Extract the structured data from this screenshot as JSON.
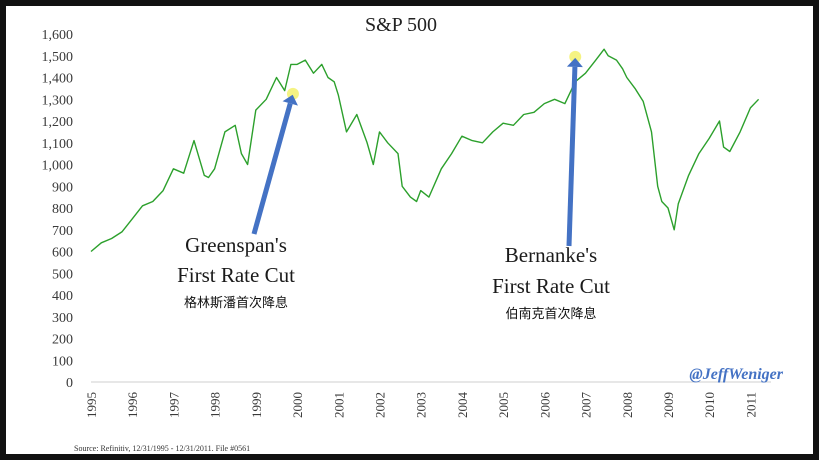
{
  "chart_data": {
    "type": "line",
    "title": "S&P 500",
    "xlabel": "",
    "ylabel": "",
    "ylim": [
      0,
      1600
    ],
    "yticks": [
      "0",
      "100",
      "200",
      "300",
      "400",
      "500",
      "600",
      "700",
      "800",
      "900",
      "1,000",
      "1,100",
      "1,200",
      "1,300",
      "1,400",
      "1,500",
      "1,600"
    ],
    "xticks": [
      "1995",
      "1996",
      "1997",
      "1998",
      "1999",
      "2000",
      "2001",
      "2002",
      "2003",
      "2004",
      "2005",
      "2006",
      "2007",
      "2008",
      "2009",
      "2010",
      "2011"
    ],
    "xlim": [
      1995.0,
      2011.5
    ],
    "grid": false,
    "line_color": "#2ca02c",
    "series": [
      {
        "name": "",
        "x": [
          1995.0,
          1995.25,
          1995.5,
          1995.75,
          1996.0,
          1996.25,
          1996.5,
          1996.75,
          1997.0,
          1997.25,
          1997.5,
          1997.75,
          1997.85,
          1998.0,
          1998.25,
          1998.5,
          1998.65,
          1998.8,
          1999.0,
          1999.25,
          1999.5,
          1999.7,
          1999.85,
          2000.0,
          2000.2,
          2000.4,
          2000.6,
          2000.75,
          2000.9,
          2001.0,
          2001.2,
          2001.45,
          2001.7,
          2001.85,
          2002.0,
          2002.2,
          2002.45,
          2002.55,
          2002.75,
          2002.9,
          2003.0,
          2003.2,
          2003.5,
          2003.75,
          2004.0,
          2004.25,
          2004.5,
          2004.75,
          2005.0,
          2005.25,
          2005.5,
          2005.75,
          2006.0,
          2006.25,
          2006.5,
          2006.75,
          2007.0,
          2007.25,
          2007.45,
          2007.55,
          2007.75,
          2007.9,
          2008.0,
          2008.2,
          2008.4,
          2008.6,
          2008.75,
          2008.85,
          2009.0,
          2009.15,
          2009.25,
          2009.5,
          2009.75,
          2010.0,
          2010.25,
          2010.35,
          2010.5,
          2010.75,
          2011.0,
          2011.2
        ],
        "y": [
          600,
          640,
          660,
          690,
          750,
          810,
          830,
          880,
          980,
          960,
          1110,
          950,
          940,
          980,
          1150,
          1180,
          1050,
          1000,
          1250,
          1300,
          1400,
          1340,
          1460,
          1460,
          1480,
          1420,
          1460,
          1400,
          1380,
          1320,
          1150,
          1230,
          1100,
          1000,
          1150,
          1100,
          1050,
          900,
          850,
          830,
          880,
          850,
          980,
          1050,
          1130,
          1110,
          1100,
          1150,
          1190,
          1180,
          1230,
          1240,
          1280,
          1300,
          1280,
          1380,
          1420,
          1480,
          1530,
          1500,
          1480,
          1440,
          1400,
          1350,
          1290,
          1150,
          900,
          830,
          800,
          700,
          820,
          950,
          1050,
          1120,
          1200,
          1080,
          1060,
          1150,
          1260,
          1300
        ]
      }
    ]
  },
  "annotations": [
    {
      "title_line1": "Greenspan's",
      "title_line2": "First Rate Cut",
      "cn": "格林斯潘首次降息",
      "point_x": 1999.9,
      "point_y": 1325
    },
    {
      "title_line1": "Bernanke's",
      "title_line2": "First Rate Cut",
      "cn": "伯南克首次降息",
      "point_x": 2006.75,
      "point_y": 1495
    }
  ],
  "credit": "@JeffWeniger",
  "source": "Source: Refinitiv, 12/31/1995 - 12/31/2011. File #0561",
  "colors": {
    "arrow": "#4472c4",
    "highlight": "#f2ef5a",
    "line": "#2ca02c"
  }
}
